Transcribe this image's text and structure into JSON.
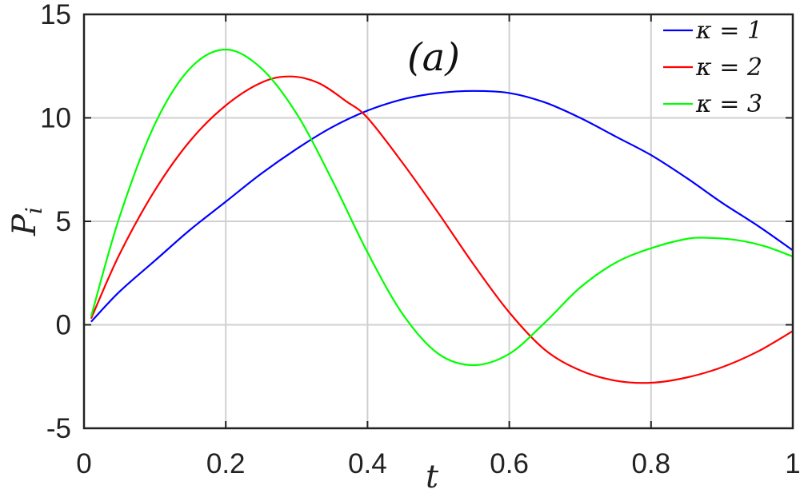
{
  "chart_data": {
    "type": "line",
    "title": "",
    "xlabel": "t",
    "ylabel": "P",
    "ylabel_sub": "i",
    "xlim": [
      0,
      1
    ],
    "ylim": [
      -5,
      15
    ],
    "xticks": [
      0,
      0.2,
      0.4,
      0.6,
      0.8,
      1
    ],
    "xtick_labels": [
      "0",
      "0.2",
      "0.4",
      "0.6",
      "0.8",
      "1"
    ],
    "yticks": [
      -5,
      0,
      5,
      10,
      15
    ],
    "ytick_labels": [
      "-5",
      "0",
      "5",
      "10",
      "15"
    ],
    "grid": true,
    "legend_position": "top-right",
    "annotation": "(a)",
    "series": [
      {
        "name": "κ = 1",
        "color": "#0000ff",
        "x": [
          0.01,
          0.05,
          0.1,
          0.15,
          0.2,
          0.25,
          0.3,
          0.35,
          0.4,
          0.45,
          0.5,
          0.55,
          0.6,
          0.65,
          0.7,
          0.75,
          0.8,
          0.85,
          0.9,
          0.95,
          1.0
        ],
        "y": [
          0.15,
          1.6,
          3.1,
          4.6,
          5.95,
          7.3,
          8.5,
          9.55,
          10.35,
          10.9,
          11.2,
          11.3,
          11.2,
          10.75,
          10.0,
          9.1,
          8.2,
          7.1,
          5.9,
          4.8,
          3.6
        ]
      },
      {
        "name": "κ = 2",
        "color": "#ff0000",
        "x": [
          0.01,
          0.05,
          0.1,
          0.15,
          0.2,
          0.25,
          0.29,
          0.33,
          0.37,
          0.4,
          0.45,
          0.5,
          0.55,
          0.6,
          0.65,
          0.7,
          0.75,
          0.8,
          0.85,
          0.9,
          0.95,
          1.0
        ],
        "y": [
          0.3,
          3.4,
          6.5,
          8.9,
          10.6,
          11.7,
          12.0,
          11.7,
          10.8,
          10.0,
          7.8,
          5.4,
          2.9,
          0.6,
          -1.2,
          -2.2,
          -2.7,
          -2.8,
          -2.55,
          -2.05,
          -1.3,
          -0.3
        ]
      },
      {
        "name": "κ = 3",
        "color": "#00ff00",
        "x": [
          0.01,
          0.05,
          0.1,
          0.15,
          0.2,
          0.25,
          0.3,
          0.35,
          0.4,
          0.45,
          0.5,
          0.55,
          0.6,
          0.65,
          0.7,
          0.75,
          0.8,
          0.85,
          0.88,
          0.92,
          0.96,
          1.0
        ],
        "y": [
          0.4,
          5.2,
          9.7,
          12.4,
          13.3,
          12.4,
          10.2,
          7.0,
          3.5,
          0.5,
          -1.4,
          -1.95,
          -1.4,
          0.1,
          1.8,
          3.0,
          3.7,
          4.15,
          4.2,
          4.1,
          3.8,
          3.3
        ]
      }
    ]
  }
}
